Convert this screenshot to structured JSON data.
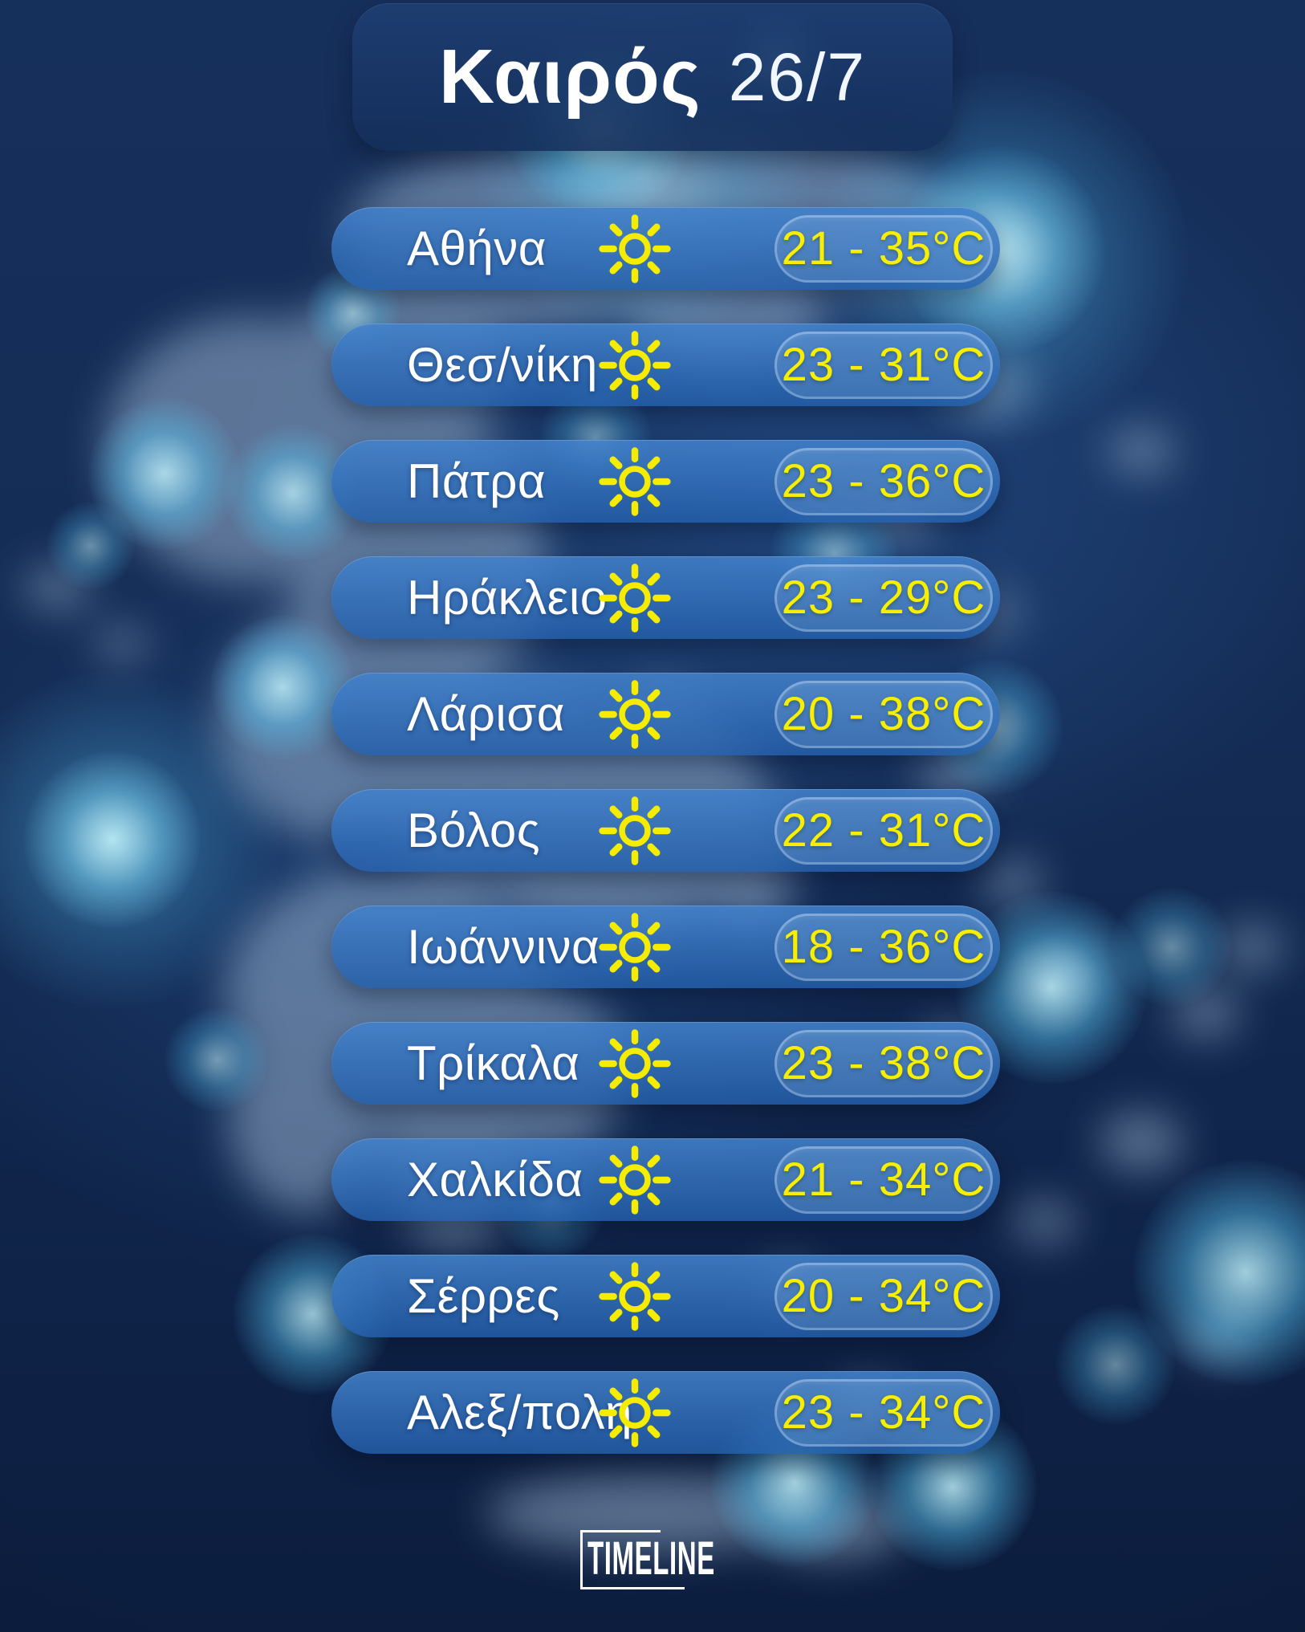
{
  "header": {
    "title": "Καιρός",
    "date": "26/7"
  },
  "footer": {
    "logo_text": "TIMELINE"
  },
  "colors": {
    "background_navy": "#12294f",
    "row_blue": "#2e6db8",
    "header_panel_blue": "#1c3e74",
    "temp_yellow": "#f8ef00",
    "sun_yellow": "#f5ec00",
    "text_white": "#ffffff",
    "glow_cyan": "#54d5ff",
    "map_light": "#9db6d2"
  },
  "rows": [
    {
      "city": "Αθήνα",
      "condition": "sunny",
      "icon": "sun-icon",
      "low": 21,
      "high": 35,
      "temp_label": "21 - 35°C"
    },
    {
      "city": "Θεσ/νίκη",
      "condition": "sunny",
      "icon": "sun-icon",
      "low": 23,
      "high": 31,
      "temp_label": "23 - 31°C"
    },
    {
      "city": "Πάτρα",
      "condition": "sunny",
      "icon": "sun-icon",
      "low": 23,
      "high": 36,
      "temp_label": "23 - 36°C"
    },
    {
      "city": "Ηράκλειο",
      "condition": "sunny",
      "icon": "sun-icon",
      "low": 23,
      "high": 29,
      "temp_label": "23 - 29°C"
    },
    {
      "city": "Λάρισα",
      "condition": "sunny",
      "icon": "sun-icon",
      "low": 20,
      "high": 38,
      "temp_label": "20 - 38°C"
    },
    {
      "city": "Βόλος",
      "condition": "sunny",
      "icon": "sun-icon",
      "low": 22,
      "high": 31,
      "temp_label": "22 - 31°C"
    },
    {
      "city": "Ιωάννινα",
      "condition": "sunny",
      "icon": "sun-icon",
      "low": 18,
      "high": 36,
      "temp_label": "18 - 36°C"
    },
    {
      "city": "Τρίκαλα",
      "condition": "sunny",
      "icon": "sun-icon",
      "low": 23,
      "high": 38,
      "temp_label": "23 - 38°C"
    },
    {
      "city": "Χαλκίδα",
      "condition": "sunny",
      "icon": "sun-icon",
      "low": 21,
      "high": 34,
      "temp_label": "21 - 34°C"
    },
    {
      "city": "Σέρρες",
      "condition": "sunny",
      "icon": "sun-icon",
      "low": 20,
      "high": 34,
      "temp_label": "20 - 34°C"
    },
    {
      "city": "Αλεξ/πολη",
      "condition": "sunny",
      "icon": "sun-icon",
      "low": 23,
      "high": 34,
      "temp_label": "23 - 34°C"
    }
  ],
  "chart_data": {
    "type": "table",
    "title": "Καιρός 26/7",
    "columns": [
      "city",
      "condition",
      "temp_min_c",
      "temp_max_c"
    ],
    "rows": [
      [
        "Αθήνα",
        "sunny",
        21,
        35
      ],
      [
        "Θεσ/νίκη",
        "sunny",
        23,
        31
      ],
      [
        "Πάτρα",
        "sunny",
        23,
        36
      ],
      [
        "Ηράκλειο",
        "sunny",
        23,
        29
      ],
      [
        "Λάρισα",
        "sunny",
        20,
        38
      ],
      [
        "Βόλος",
        "sunny",
        22,
        31
      ],
      [
        "Ιωάννινα",
        "sunny",
        18,
        36
      ],
      [
        "Τρίκαλα",
        "sunny",
        23,
        38
      ],
      [
        "Χαλκίδα",
        "sunny",
        21,
        34
      ],
      [
        "Σέρρες",
        "sunny",
        20,
        34
      ],
      [
        "Αλεξ/πολη",
        "sunny",
        23,
        34
      ]
    ]
  }
}
